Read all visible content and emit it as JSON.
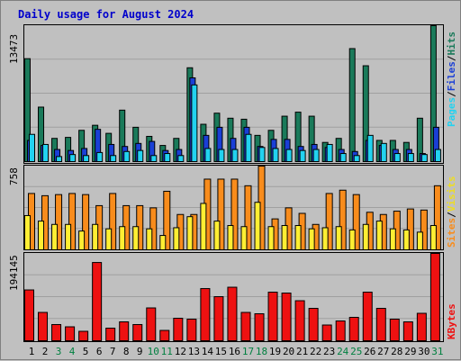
{
  "title": "Daily usage for August 2024",
  "colors": {
    "hits": "#1a7a5a",
    "files": "#1a3fd6",
    "pages": "#22d2f0",
    "visits": "#f88c1c",
    "sites": "#ffee33",
    "kbytes": "#ee1111",
    "weekend_day_label": "#008040"
  },
  "chart_data": [
    {
      "type": "bar",
      "title": "Daily usage for August 2024",
      "categories": [
        "1",
        "2",
        "3",
        "4",
        "5",
        "6",
        "7",
        "8",
        "9",
        "10",
        "11",
        "12",
        "13",
        "14",
        "15",
        "16",
        "17",
        "18",
        "19",
        "20",
        "21",
        "22",
        "23",
        "24",
        "25",
        "26",
        "27",
        "28",
        "29",
        "30",
        "31"
      ],
      "weekend_days": [
        "3",
        "4",
        "10",
        "11",
        "17",
        "18",
        "24",
        "25",
        "31"
      ],
      "ymax_label": "13473",
      "ylim": [
        0,
        13473
      ],
      "grid": true,
      "legend": [
        "Hits",
        "Files",
        "Pages"
      ],
      "series": [
        {
          "name": "Hits",
          "values": [
            10200,
            5400,
            2300,
            2400,
            3100,
            3600,
            2800,
            5100,
            3400,
            2500,
            1600,
            2300,
            9300,
            3700,
            4800,
            4300,
            4200,
            2600,
            3100,
            4500,
            4900,
            4500,
            1900,
            2300,
            11200,
            9500,
            2100,
            2100,
            1900,
            4300,
            13473
          ]
        },
        {
          "name": "Files",
          "values": [
            2100,
            1600,
            1200,
            1100,
            1300,
            3200,
            1700,
            1500,
            1800,
            2000,
            1100,
            1200,
            8300,
            2600,
            3400,
            2300,
            3400,
            1500,
            2200,
            2200,
            1500,
            1700,
            1400,
            1200,
            1000,
            2100,
            1600,
            1200,
            1200,
            800,
            3400
          ]
        },
        {
          "name": "Pages",
          "values": [
            2700,
            1700,
            500,
            700,
            600,
            900,
            600,
            1000,
            1100,
            600,
            800,
            600,
            7600,
            1300,
            1200,
            1200,
            2700,
            1400,
            1300,
            1200,
            1100,
            1200,
            1700,
            800,
            600,
            2600,
            1800,
            800,
            800,
            700,
            1200
          ]
        }
      ]
    },
    {
      "type": "bar",
      "categories": [
        "1",
        "2",
        "3",
        "4",
        "5",
        "6",
        "7",
        "8",
        "9",
        "10",
        "11",
        "12",
        "13",
        "14",
        "15",
        "16",
        "17",
        "18",
        "19",
        "20",
        "21",
        "22",
        "23",
        "24",
        "25",
        "26",
        "27",
        "28",
        "29",
        "30",
        "31"
      ],
      "ymax_label": "758",
      "ylim": [
        0,
        758
      ],
      "grid": true,
      "legend": [
        "Sites",
        "Visits"
      ],
      "series": [
        {
          "name": "Visits",
          "values": [
            510,
            490,
            500,
            510,
            500,
            400,
            510,
            400,
            400,
            380,
            530,
            320,
            320,
            640,
            640,
            640,
            580,
            758,
            280,
            380,
            330,
            230,
            510,
            540,
            500,
            340,
            320,
            350,
            370,
            360,
            580
          ]
        },
        {
          "name": "Sites",
          "values": [
            310,
            260,
            230,
            230,
            170,
            230,
            190,
            210,
            210,
            190,
            130,
            200,
            300,
            420,
            260,
            220,
            210,
            430,
            210,
            220,
            220,
            190,
            200,
            210,
            180,
            230,
            260,
            190,
            180,
            160,
            220
          ]
        }
      ]
    },
    {
      "type": "bar",
      "categories": [
        "1",
        "2",
        "3",
        "4",
        "5",
        "6",
        "7",
        "8",
        "9",
        "10",
        "11",
        "12",
        "13",
        "14",
        "15",
        "16",
        "17",
        "18",
        "19",
        "20",
        "21",
        "22",
        "23",
        "24",
        "25",
        "26",
        "27",
        "28",
        "29",
        "30",
        "31"
      ],
      "ymax_label": "194145",
      "ylim": [
        0,
        194145
      ],
      "grid": true,
      "legend": [
        "KBytes"
      ],
      "series": [
        {
          "name": "KBytes",
          "values": [
            113000,
            63000,
            36000,
            31000,
            21000,
            174000,
            28000,
            42000,
            36000,
            73000,
            23000,
            50000,
            48000,
            116000,
            98000,
            119000,
            63000,
            60000,
            108000,
            106000,
            89000,
            72000,
            35000,
            44000,
            52000,
            108000,
            72000,
            48000,
            42000,
            61000,
            194145
          ]
        }
      ]
    }
  ]
}
